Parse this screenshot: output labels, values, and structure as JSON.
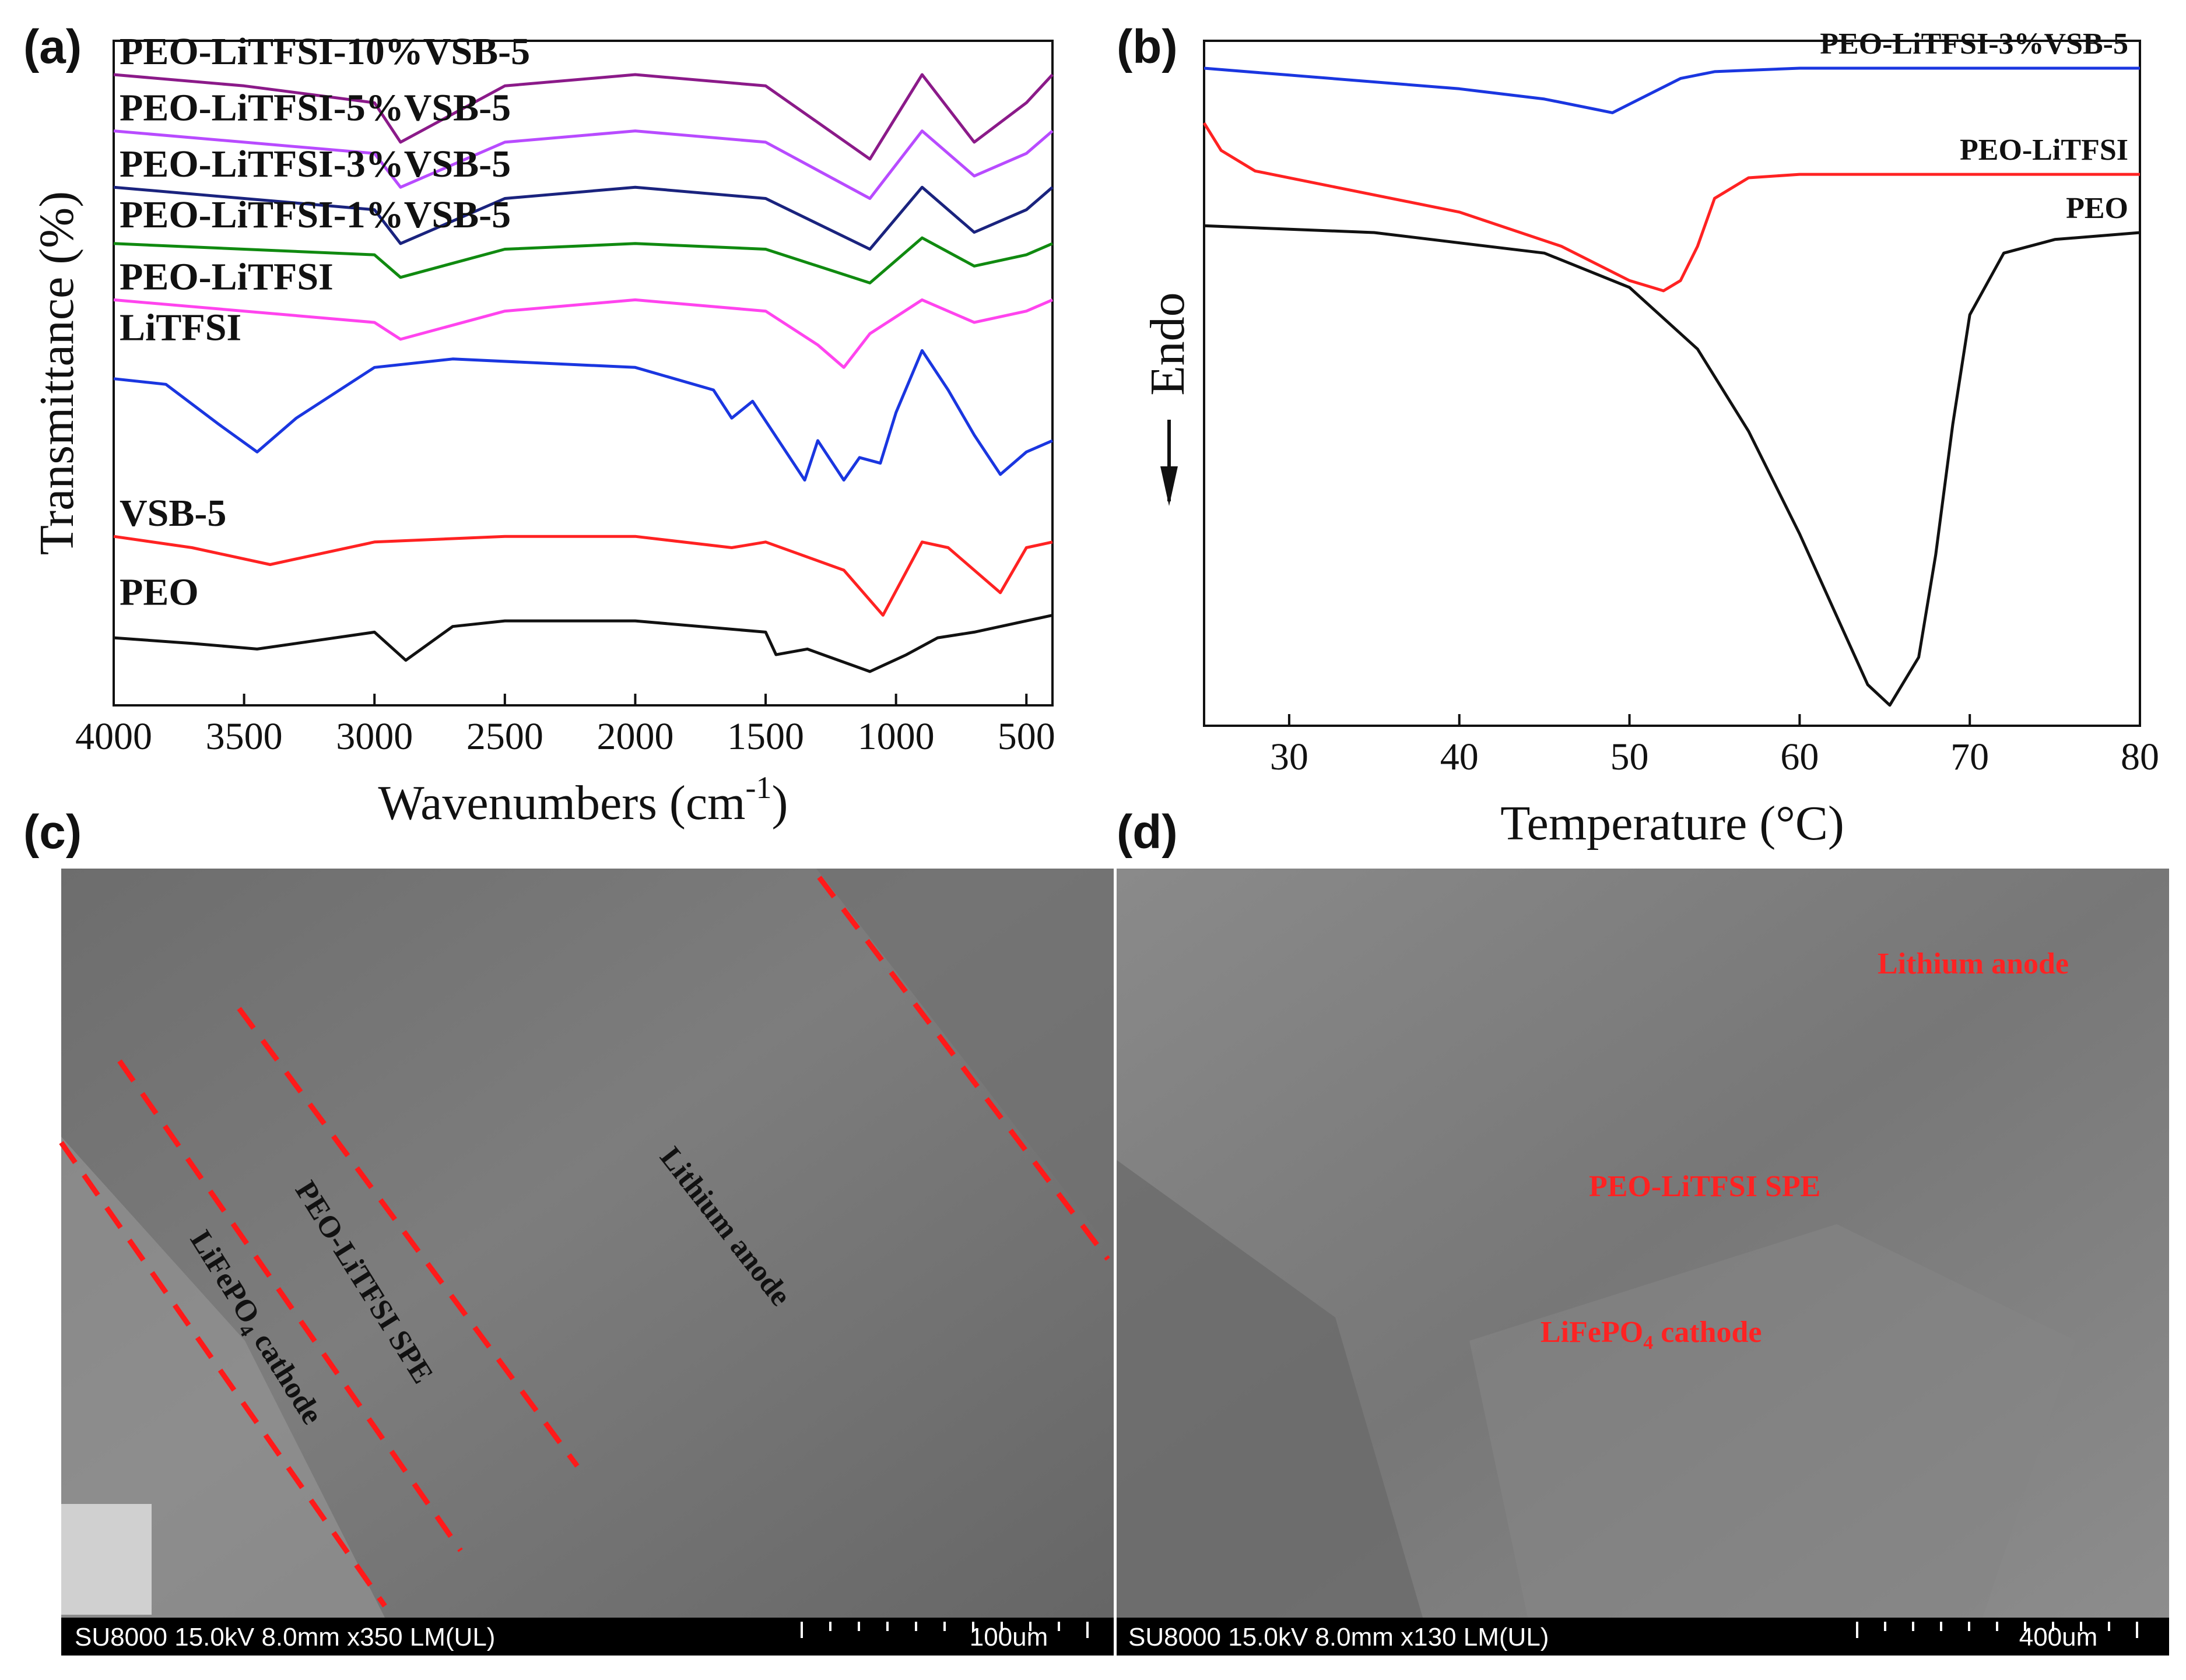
{
  "panels": {
    "a": {
      "letter": "(a)",
      "chart_data": {
        "type": "line",
        "xlabel": "Wavenumbers (cm",
        "xlabel_sup": "-1",
        "xlabel_end": ")",
        "ylabel": "Transmittance (%)",
        "xlim": [
          4000,
          400
        ],
        "xticks": [
          4000,
          3500,
          3000,
          2500,
          2000,
          1500,
          1000,
          500
        ],
        "series": [
          {
            "name": "PEO-LiTFSI-10%VSB-5",
            "color": "#8b1a89",
            "x": [
              4000,
              3500,
              3000,
              2900,
              2500,
              2000,
              1500,
              1100,
              900,
              700,
              500,
              400
            ],
            "y": [
              7,
              6.8,
              6.5,
              5.8,
              6.8,
              7,
              6.8,
              5.5,
              7,
              5.8,
              6.5,
              7
            ]
          },
          {
            "name": "PEO-LiTFSI-5%VSB-5",
            "color": "#b84bff",
            "x": [
              4000,
              3500,
              3000,
              2900,
              2500,
              2000,
              1500,
              1100,
              900,
              700,
              500,
              400
            ],
            "y": [
              6,
              5.8,
              5.6,
              5.0,
              5.8,
              6,
              5.8,
              4.8,
              6,
              5.2,
              5.6,
              6
            ]
          },
          {
            "name": "PEO-LiTFSI-3%VSB-5",
            "color": "#1a237e",
            "x": [
              4000,
              3500,
              3000,
              2900,
              2500,
              2000,
              1500,
              1100,
              900,
              700,
              500,
              400
            ],
            "y": [
              5,
              4.8,
              4.6,
              4.0,
              4.8,
              5,
              4.8,
              3.9,
              5,
              4.2,
              4.6,
              5
            ]
          },
          {
            "name": "PEO-LiTFSI-1%VSB-5",
            "color": "#108a10",
            "x": [
              4000,
              3500,
              3000,
              2900,
              2500,
              2000,
              1500,
              1100,
              900,
              700,
              500,
              400
            ],
            "y": [
              4,
              3.9,
              3.8,
              3.4,
              3.9,
              4,
              3.9,
              3.3,
              4.1,
              3.6,
              3.8,
              4
            ]
          },
          {
            "name": "PEO-LiTFSI",
            "color": "#ff44ee",
            "x": [
              4000,
              3500,
              3000,
              2900,
              2500,
              2000,
              1500,
              1300,
              1200,
              1100,
              900,
              700,
              500,
              400
            ],
            "y": [
              3,
              2.8,
              2.6,
              2.3,
              2.8,
              3,
              2.8,
              2.2,
              1.8,
              2.4,
              3,
              2.6,
              2.8,
              3
            ]
          },
          {
            "name": "LiTFSI",
            "color": "#1a36e0",
            "x": [
              4000,
              3800,
              3600,
              3450,
              3300,
              3000,
              2700,
              2000,
              1700,
              1630,
              1550,
              1350,
              1300,
              1200,
              1140,
              1060,
              1000,
              900,
              800,
              700,
              600,
              500,
              400
            ],
            "y": [
              1.6,
              1.5,
              0.8,
              0.3,
              0.9,
              1.8,
              1.95,
              1.8,
              1.4,
              0.9,
              1.2,
              -0.2,
              0.5,
              -0.2,
              0.2,
              0.1,
              1.0,
              2.1,
              1.4,
              0.6,
              -0.1,
              0.3,
              0.5
            ]
          },
          {
            "name": "VSB-5",
            "color": "#ff2222",
            "x": [
              4000,
              3700,
              3400,
              3000,
              2500,
              2000,
              1630,
              1500,
              1200,
              1050,
              900,
              800,
              600,
              500,
              400
            ],
            "y": [
              -1.2,
              -1.4,
              -1.7,
              -1.3,
              -1.2,
              -1.2,
              -1.4,
              -1.3,
              -1.8,
              -2.6,
              -1.3,
              -1.4,
              -2.2,
              -1.4,
              -1.3
            ]
          },
          {
            "name": "PEO",
            "color": "#111111",
            "x": [
              4000,
              3700,
              3450,
              3000,
              2880,
              2700,
              2500,
              2000,
              1500,
              1460,
              1340,
              1280,
              1100,
              960,
              840,
              700,
              500,
              400
            ],
            "y": [
              -3.0,
              -3.1,
              -3.2,
              -2.9,
              -3.4,
              -2.8,
              -2.7,
              -2.7,
              -2.9,
              -3.3,
              -3.2,
              -3.3,
              -3.6,
              -3.3,
              -3.0,
              -2.9,
              -2.7,
              -2.6
            ]
          }
        ]
      }
    },
    "b": {
      "letter": "(b)",
      "chart_data": {
        "type": "line",
        "xlabel": "Temperature (°C)",
        "ylabel": "Endo",
        "xlim": [
          25,
          80
        ],
        "xticks": [
          30,
          40,
          50,
          60,
          70,
          80
        ],
        "series": [
          {
            "name": "PEO-LiTFSI-3%VSB-5",
            "color": "#1a36e0",
            "x": [
              25,
              30,
              40,
              45,
              48,
              49,
              51,
              53,
              55,
              60,
              70,
              80
            ],
            "y": [
              9.6,
              9.5,
              9.3,
              9.15,
              9.0,
              8.95,
              9.2,
              9.45,
              9.55,
              9.6,
              9.6,
              9.6
            ]
          },
          {
            "name": "PEO-LiTFSI",
            "color": "#ff2222",
            "x": [
              25,
              26,
              28,
              32,
              40,
              46,
              50,
              52,
              53,
              54,
              55,
              57,
              60,
              70,
              80
            ],
            "y": [
              8.8,
              8.4,
              8.1,
              7.9,
              7.5,
              7.0,
              6.5,
              6.35,
              6.5,
              7.0,
              7.7,
              8.0,
              8.05,
              8.05,
              8.05
            ]
          },
          {
            "name": "PEO",
            "color": "#111111",
            "x": [
              25,
              35,
              45,
              50,
              54,
              57,
              60,
              62,
              64,
              65.3,
              67,
              68,
              69,
              70,
              72,
              75,
              80
            ],
            "y": [
              7.3,
              7.2,
              6.9,
              6.4,
              5.5,
              4.3,
              2.8,
              1.7,
              0.6,
              0.3,
              1.0,
              2.5,
              4.4,
              6.0,
              6.9,
              7.1,
              7.2
            ]
          }
        ]
      }
    },
    "c": {
      "letter": "(c)",
      "labels": {
        "lithium": "Lithium anode",
        "spe": "PEO-LiTFSI SPE",
        "cathode": "LiFePO",
        "cathode_sub": "4",
        "cathode_end": " cathode"
      },
      "info": "SU8000 15.0kV 8.0mm x350 LM(UL)",
      "scale": "100um"
    },
    "d": {
      "letter": "(d)",
      "labels": {
        "lithium": "Lithium anode",
        "spe": "PEO-LiTFSI SPE",
        "cathode": "LiFePO",
        "cathode_sub": "4",
        "cathode_end": " cathode"
      },
      "info": "SU8000 15.0kV 8.0mm x130 LM(UL)",
      "scale": "400um"
    }
  }
}
